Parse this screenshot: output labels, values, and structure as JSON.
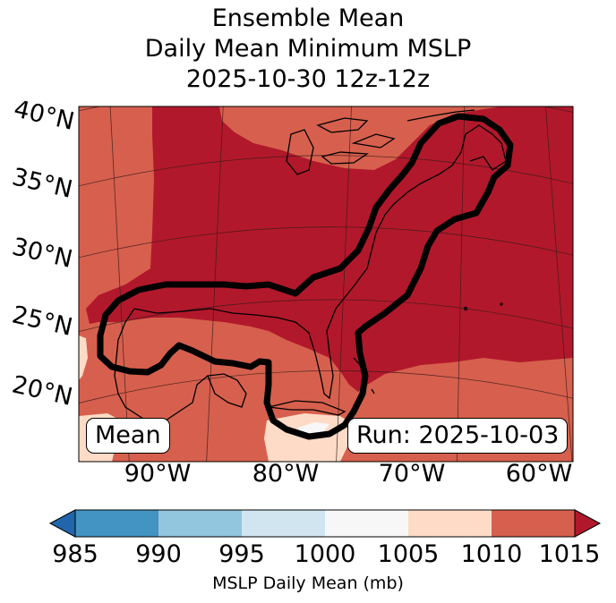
{
  "title": {
    "line1": "Ensemble Mean",
    "line2": "Daily Mean Minimum MSLP",
    "line3": "2025-10-30 12z-12z"
  },
  "map": {
    "lat_labels": [
      "40°N",
      "35°N",
      "30°N",
      "25°N",
      "20°N"
    ],
    "lon_labels": [
      "90°W",
      "80°W",
      "70°W",
      "60°W"
    ],
    "left_box": "Mean",
    "right_box": "Run: 2025-10-03",
    "fill_colors": {
      "1015": "#b2182b",
      "1010": "#d6604d",
      "1005": "#fddbc7",
      "1000": "#f7f7f7"
    }
  },
  "colorbar": {
    "label": "MSLP Daily Mean (mb)",
    "ticks": [
      "985",
      "990",
      "995",
      "1000",
      "1005",
      "1010",
      "1015"
    ],
    "colors": [
      "#4393c3",
      "#92c5de",
      "#d1e5f0",
      "#f7f7f7",
      "#fddbc7",
      "#d6604d"
    ],
    "extend_low_color": "#2166ac",
    "extend_high_color": "#b2182b"
  }
}
